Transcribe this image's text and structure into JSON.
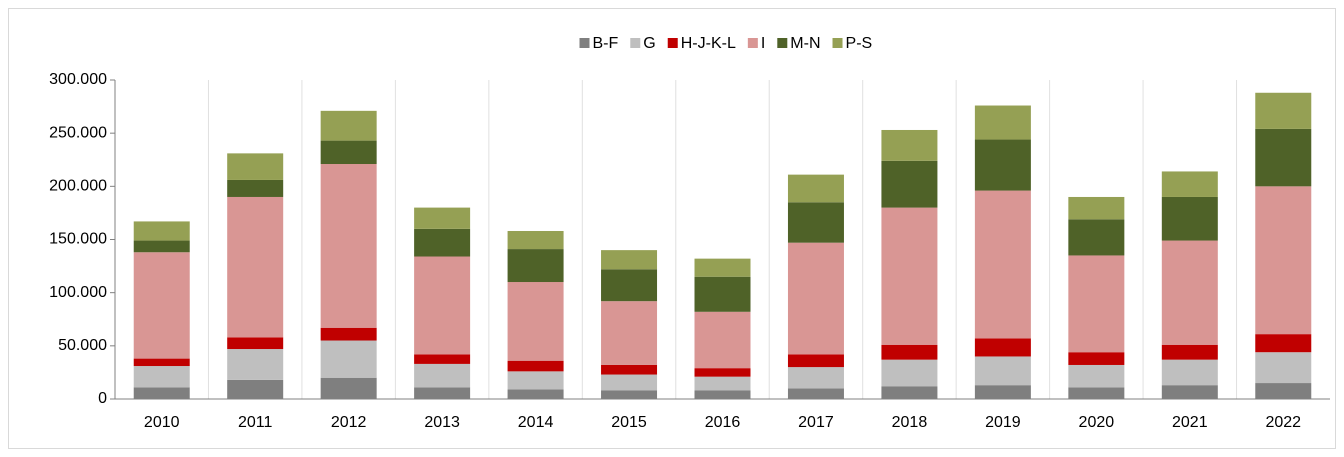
{
  "chart_data": {
    "type": "stacked_bar",
    "categories": [
      "2010",
      "2011",
      "2012",
      "2013",
      "2014",
      "2015",
      "2016",
      "2017",
      "2018",
      "2019",
      "2020",
      "2021",
      "2022"
    ],
    "series": [
      {
        "name": "B-F",
        "color": "#7f7f7f",
        "values": [
          11000,
          18000,
          20000,
          11000,
          9000,
          8000,
          8000,
          10000,
          12000,
          13000,
          11000,
          13000,
          15000
        ]
      },
      {
        "name": "G",
        "color": "#bfbfbf",
        "values": [
          20000,
          29000,
          35000,
          22000,
          17000,
          15000,
          13000,
          20000,
          25000,
          27000,
          21000,
          24000,
          29000
        ]
      },
      {
        "name": "H-J-K-L",
        "color": "#c00000",
        "values": [
          7000,
          11000,
          12000,
          9000,
          10000,
          9000,
          8000,
          12000,
          14000,
          17000,
          12000,
          14000,
          17000
        ]
      },
      {
        "name": "I",
        "color": "#d99694",
        "values": [
          100000,
          132000,
          154000,
          92000,
          74000,
          60000,
          53000,
          105000,
          129000,
          139000,
          91000,
          98000,
          139000
        ]
      },
      {
        "name": "M-N",
        "color": "#4f6228",
        "values": [
          11000,
          16000,
          22000,
          26000,
          31000,
          30000,
          33000,
          38000,
          44000,
          48000,
          34000,
          41000,
          54000
        ]
      },
      {
        "name": "P-S",
        "color": "#95a054",
        "values": [
          18000,
          25000,
          28000,
          20000,
          17000,
          18000,
          17000,
          26000,
          29000,
          32000,
          21000,
          24000,
          34000
        ]
      }
    ],
    "ylim": [
      0,
      300000
    ],
    "yticks": [
      0,
      {
        "value": 50000,
        "label": "50.000"
      },
      {
        "value": 100000,
        "label": "100.000"
      },
      {
        "value": 150000,
        "label": "150.000"
      },
      {
        "value": 200000,
        "label": "200.000"
      },
      {
        "value": 250000,
        "label": "250.000"
      },
      {
        "value": 300000,
        "label": "300.000"
      }
    ],
    "legend": "top"
  }
}
